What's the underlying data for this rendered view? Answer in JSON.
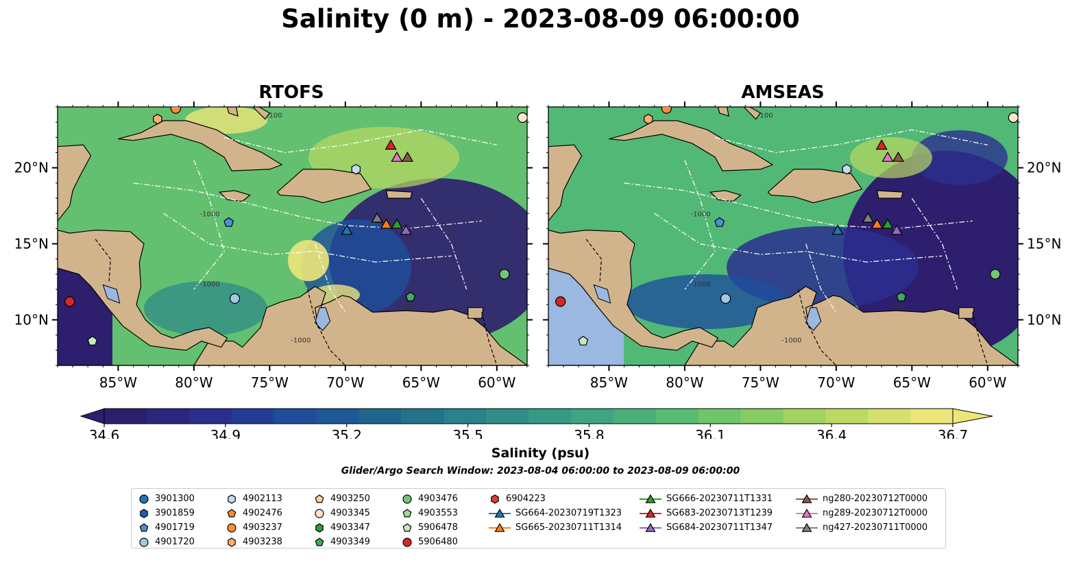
{
  "title": "Salinity (0 m) - 2023-08-09 06:00:00",
  "panels": [
    {
      "title": "RTOFS"
    },
    {
      "title": "AMSEAS"
    }
  ],
  "map": {
    "lon_range": [
      -89.0,
      -58.0
    ],
    "lat_range": [
      7.0,
      24.0
    ],
    "lon_ticks": [
      -85,
      -80,
      -75,
      -70,
      -65,
      -60
    ],
    "lon_tick_labels": [
      "85°W",
      "80°W",
      "75°W",
      "70°W",
      "65°W",
      "60°W"
    ],
    "lat_ticks": [
      10,
      15,
      20
    ],
    "lat_tick_labels": [
      "10°N",
      "15°N",
      "20°N"
    ],
    "land_color": "#d2b48c",
    "water_color": "#9ab8e0",
    "contour_labels": [
      "-100",
      "-1000",
      "-100",
      "-1000",
      "-1000"
    ]
  },
  "colorbar": {
    "min": 34.6,
    "max": 36.7,
    "ticks": [
      34.6,
      34.9,
      35.2,
      35.5,
      35.8,
      36.1,
      36.4,
      36.7
    ],
    "tick_labels": [
      "34.6",
      "34.9",
      "35.2",
      "35.5",
      "35.8",
      "36.1",
      "36.4",
      "36.7"
    ],
    "label": "Salinity (psu)",
    "colormap": [
      "#2e1e6e",
      "#2a2f8f",
      "#1e4f9c",
      "#1f6a8c",
      "#2c8789",
      "#3aa084",
      "#52b876",
      "#7fcc63",
      "#b9d862",
      "#ece57a"
    ]
  },
  "search_window": "Glider/Argo Search Window: 2023-08-04 06:00:00 to 2023-08-09 06:00:00",
  "platforms": [
    {
      "name": "3901300",
      "marker": "circle",
      "color": "#1f77b4",
      "lon": null,
      "lat": null
    },
    {
      "name": "3901859",
      "marker": "hexagon",
      "color": "#1f5fa8",
      "lon": null,
      "lat": null
    },
    {
      "name": "4901719",
      "marker": "pentagon",
      "color": "#4a90d9",
      "lon": -77.7,
      "lat": 16.4
    },
    {
      "name": "4901720",
      "marker": "circle",
      "color": "#9ecae1",
      "lon": -77.3,
      "lat": 11.4
    },
    {
      "name": "4902113",
      "marker": "hexagon",
      "color": "#c6dbef",
      "lon": -69.3,
      "lat": 19.9
    },
    {
      "name": "4902476",
      "marker": "pentagon",
      "color": "#f28e2b",
      "lon": null,
      "lat": null
    },
    {
      "name": "4903237",
      "marker": "circle",
      "color": "#fd8d3c",
      "lon": -81.2,
      "lat": 23.9
    },
    {
      "name": "4903238",
      "marker": "hexagon",
      "color": "#fdae6b",
      "lon": -82.4,
      "lat": 23.2
    },
    {
      "name": "4903250",
      "marker": "pentagon",
      "color": "#fdd0a2",
      "lon": null,
      "lat": null
    },
    {
      "name": "4903345",
      "marker": "circle",
      "color": "#fee6ce",
      "lon": -58.3,
      "lat": 23.3
    },
    {
      "name": "4903347",
      "marker": "hexagon",
      "color": "#2ca02c",
      "lon": null,
      "lat": null
    },
    {
      "name": "4903349",
      "marker": "pentagon",
      "color": "#41ab5d",
      "lon": -65.7,
      "lat": 11.5
    },
    {
      "name": "4903476",
      "marker": "circle",
      "color": "#74c476",
      "lon": -59.5,
      "lat": 13.0
    },
    {
      "name": "4903553",
      "marker": "pentagon",
      "color": "#a1d99b",
      "lon": null,
      "lat": null
    },
    {
      "name": "5906478",
      "marker": "pentagon",
      "color": "#c7e9c0",
      "lon": -86.7,
      "lat": 8.6
    },
    {
      "name": "5906480",
      "marker": "circle",
      "color": "#d62728",
      "lon": -88.2,
      "lat": 11.2
    },
    {
      "name": "6904223",
      "marker": "hexagon",
      "color": "#e03a3a",
      "lon": null,
      "lat": null
    },
    {
      "name": "SG664-20230719T1323",
      "marker": "triangle",
      "color": "#1f77b4",
      "lon": -69.9,
      "lat": 15.9
    },
    {
      "name": "SG665-20230711T1314",
      "marker": "triangle",
      "color": "#ff7f0e",
      "lon": -67.3,
      "lat": 16.3
    },
    {
      "name": "SG666-20230711T1331",
      "marker": "triangle",
      "color": "#2ca02c",
      "lon": -66.6,
      "lat": 16.3
    },
    {
      "name": "SG683-20230713T1239",
      "marker": "triangle",
      "color": "#d62728",
      "lon": -67.0,
      "lat": 21.5
    },
    {
      "name": "SG684-20230711T1347",
      "marker": "triangle",
      "color": "#9467bd",
      "lon": -66.0,
      "lat": 15.9
    },
    {
      "name": "ng280-20230712T0000",
      "marker": "triangle",
      "color": "#8c564b",
      "lon": -65.9,
      "lat": 20.7
    },
    {
      "name": "ng289-20230712T0000",
      "marker": "triangle",
      "color": "#e377c2",
      "lon": -66.6,
      "lat": 20.7
    },
    {
      "name": "ng427-20230711T0000",
      "marker": "triangle",
      "color": "#7f7f7f",
      "lon": -67.9,
      "lat": 16.7
    }
  ]
}
